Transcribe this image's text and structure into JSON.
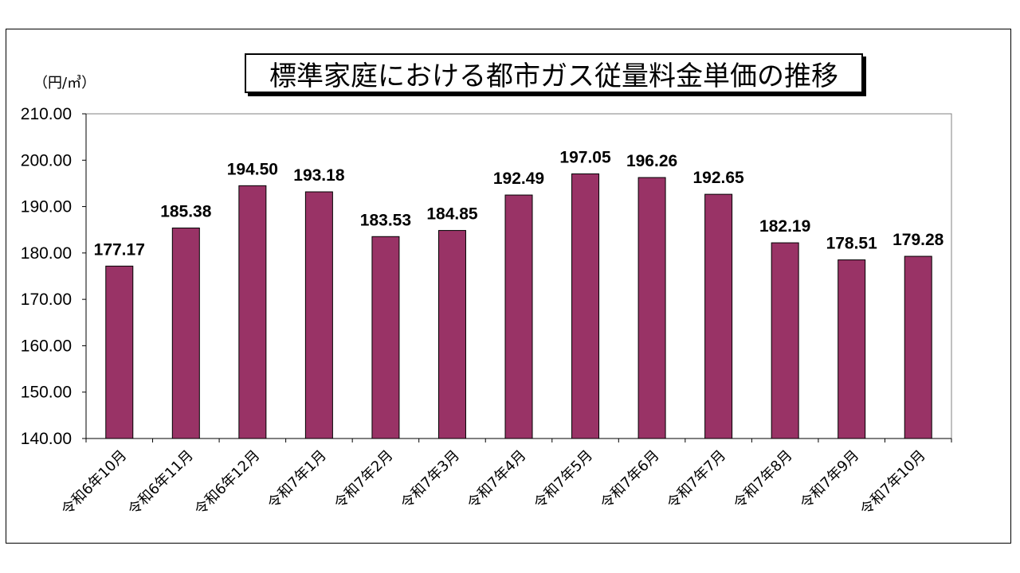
{
  "chart_data": {
    "type": "bar",
    "title": "標準家庭における都市ガス従量料金単価の推移",
    "unit_label": "（円/㎥）",
    "categories": [
      "令和6年10月",
      "令和6年11月",
      "令和6年12月",
      "令和7年1月",
      "令和7年2月",
      "令和7年3月",
      "令和7年4月",
      "令和7年5月",
      "令和7年6月",
      "令和7年7月",
      "令和7年8月",
      "令和7年9月",
      "令和7年10月"
    ],
    "values": [
      177.17,
      185.38,
      194.5,
      193.18,
      183.53,
      184.85,
      192.49,
      197.05,
      196.26,
      192.65,
      182.19,
      178.51,
      179.28
    ],
    "value_labels": [
      "177.17",
      "185.38",
      "194.50",
      "193.18",
      "183.53",
      "184.85",
      "192.49",
      "197.05",
      "196.26",
      "192.65",
      "182.19",
      "178.51",
      "179.28"
    ],
    "yticks": [
      "140.00",
      "150.00",
      "160.00",
      "170.00",
      "180.00",
      "190.00",
      "200.00",
      "210.00"
    ],
    "ylim": [
      140,
      210
    ],
    "bar_color": "#993366",
    "grid": false,
    "legend": "none"
  }
}
